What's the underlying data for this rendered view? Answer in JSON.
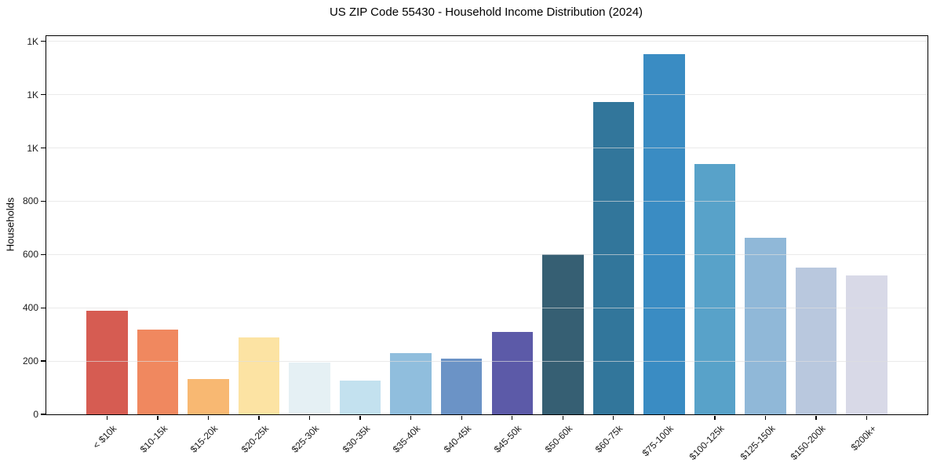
{
  "chart_data": {
    "type": "bar",
    "title": "US ZIP Code 55430 - Household Income Distribution (2024)",
    "xlabel": "",
    "ylabel": "Households",
    "categories": [
      "< $10k",
      "$10-15k",
      "$15-20k",
      "$20-25k",
      "$25-30k",
      "$30-35k",
      "$35-40k",
      "$40-45k",
      "$45-50k",
      "$50-60k",
      "$60-75k",
      "$75-100k",
      "$100-125k",
      "$125-150k",
      "$150-200k",
      "$200k+"
    ],
    "values": [
      390,
      317,
      133,
      288,
      194,
      128,
      229,
      209,
      308,
      602,
      1174,
      1352,
      939,
      663,
      551,
      522
    ],
    "bar_colors": [
      "#d65c52",
      "#f0885f",
      "#f8b872",
      "#fce3a3",
      "#e5f0f4",
      "#c3e1ef",
      "#90bedd",
      "#6b93c6",
      "#5c5aa8",
      "#365f73",
      "#32769b",
      "#3a8cc3",
      "#58a2c9",
      "#90b8d8",
      "#b9c8de",
      "#d8d9e7"
    ],
    "ylim": [
      0,
      1420
    ],
    "yticks": [
      0,
      200,
      400,
      600,
      800,
      1000,
      1200,
      1400
    ],
    "ytick_labels": [
      "0",
      "200",
      "400",
      "600",
      "800",
      "1K",
      "1K",
      "1K"
    ],
    "grid": "horizontal",
    "gridline_color": "#e0e0e0",
    "legend": "none",
    "background": "#ffffff",
    "text_color": "#1a1a1a"
  }
}
